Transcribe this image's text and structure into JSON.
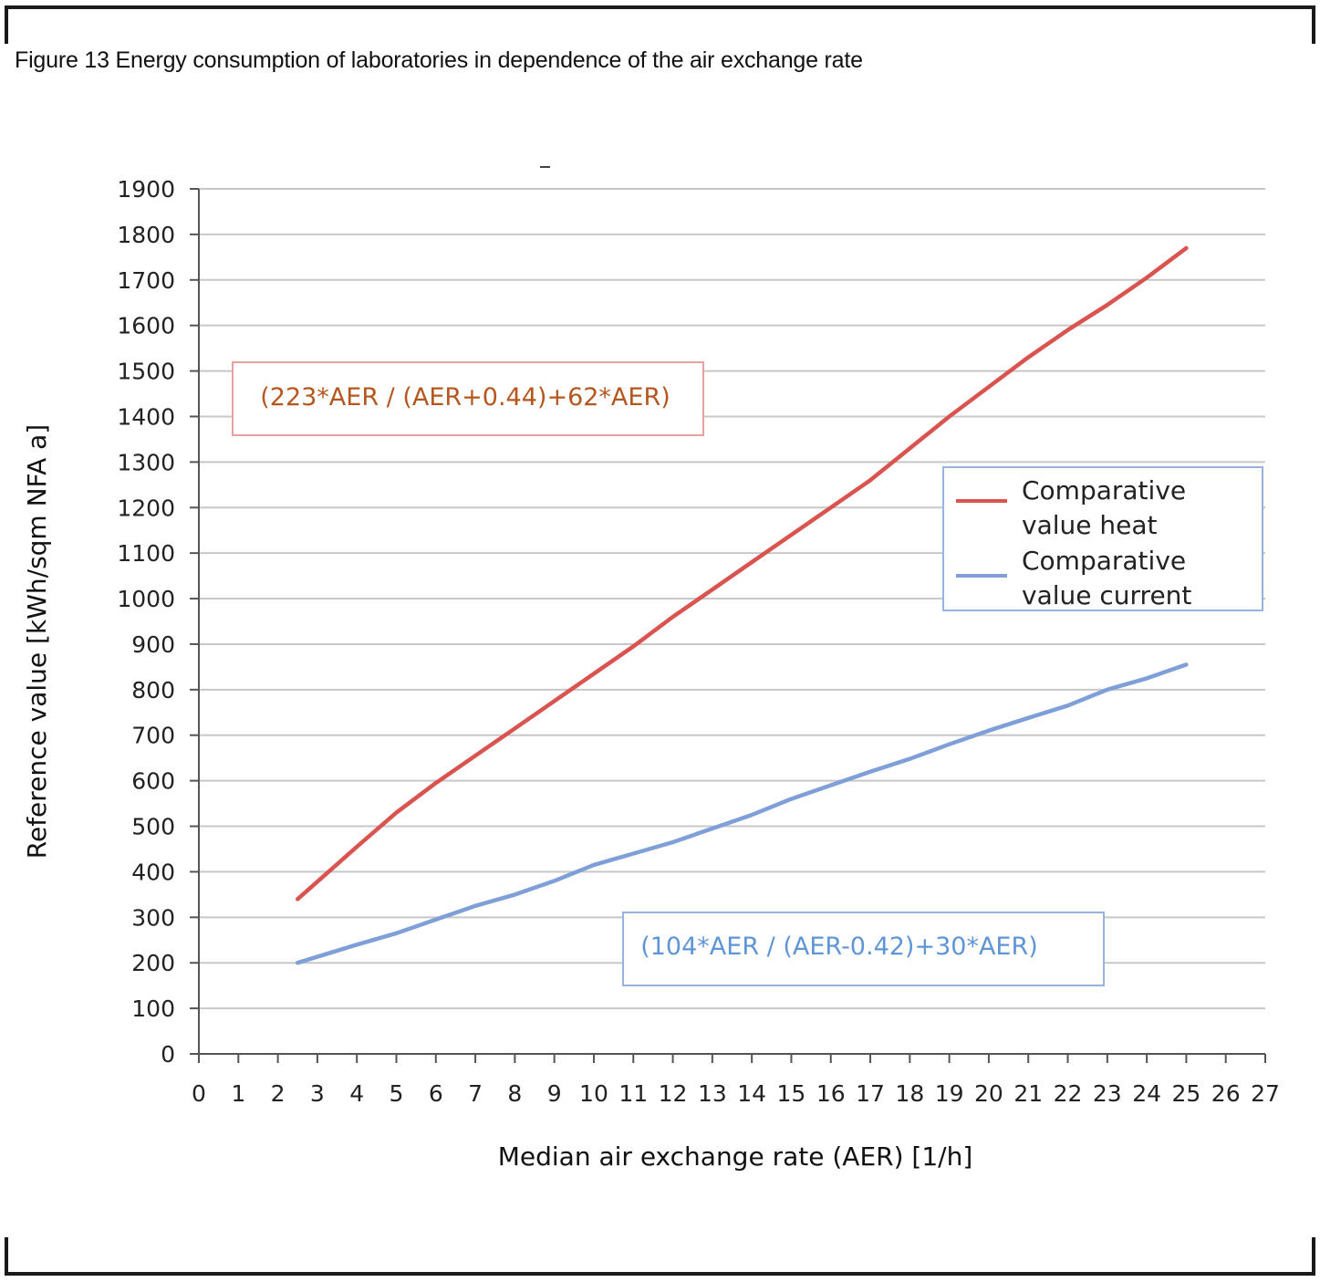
{
  "figure_title": "Figure 13 Energy consumption of laboratories in dependence of the air exchange rate",
  "colors": {
    "heat_series": "#d9534f",
    "current_series": "#7f9fd8",
    "heat_formula_text": "#b5561f",
    "heat_formula_border": "#e7a0a0",
    "current_formula_text": "#5f95d6",
    "current_formula_border": "#98b3df",
    "grid": "#c8c8c8"
  },
  "chart_data": {
    "type": "line",
    "xlabel": "Median air exchange rate (AER) [1/h]",
    "ylabel": "Reference  value  [kWh/sqm NFA a]",
    "xlim": [
      0,
      27
    ],
    "ylim": [
      0,
      1900
    ],
    "x_ticks": [
      "0",
      "1",
      "2",
      "3",
      "4",
      "5",
      "6",
      "7",
      "8",
      "9",
      "10",
      "11",
      "12",
      "13",
      "14",
      "15",
      "16",
      "17",
      "18",
      "19",
      "20",
      "21",
      "22",
      "23",
      "24",
      "25",
      "26",
      "27"
    ],
    "y_ticks": [
      "0",
      "100",
      "200",
      "300",
      "400",
      "500",
      "600",
      "700",
      "800",
      "900",
      "1000",
      "1100",
      "1200",
      "1300",
      "1400",
      "1500",
      "1600",
      "1700",
      "1800",
      "1900"
    ],
    "grid": "horizontal",
    "legend_position": "right",
    "series": [
      {
        "name": "Comparative value heat",
        "color": "#d9534f",
        "x": [
          2.5,
          4,
          5,
          6,
          7,
          8,
          9,
          10,
          11,
          12,
          13,
          14,
          15,
          16,
          17,
          18,
          19,
          20,
          21,
          22,
          23,
          24,
          25
        ],
        "y": [
          340,
          455,
          530,
          595,
          655,
          715,
          775,
          835,
          895,
          960,
          1020,
          1080,
          1140,
          1200,
          1260,
          1330,
          1400,
          1465,
          1530,
          1590,
          1645,
          1705,
          1770
        ]
      },
      {
        "name": "Comparative value current",
        "color": "#7f9fd8",
        "x": [
          2.5,
          4,
          5,
          6,
          7,
          8,
          9,
          10,
          11,
          12,
          13,
          14,
          15,
          16,
          17,
          18,
          19,
          20,
          21,
          22,
          23,
          24,
          25
        ],
        "y": [
          200,
          240,
          265,
          295,
          325,
          350,
          380,
          415,
          440,
          465,
          495,
          525,
          560,
          590,
          620,
          648,
          680,
          710,
          738,
          765,
          800,
          825,
          855
        ]
      }
    ],
    "annotations": [
      {
        "text": "(223*AER / (AER+0.44)+62*AER)"
      },
      {
        "text": "(104*AER / (AER-0.42)+30*AER)"
      }
    ],
    "legend": {
      "heat_line1": "Comparative",
      "heat_line2": "value heat",
      "current_line1": "Comparative",
      "current_line2": "value current"
    }
  }
}
